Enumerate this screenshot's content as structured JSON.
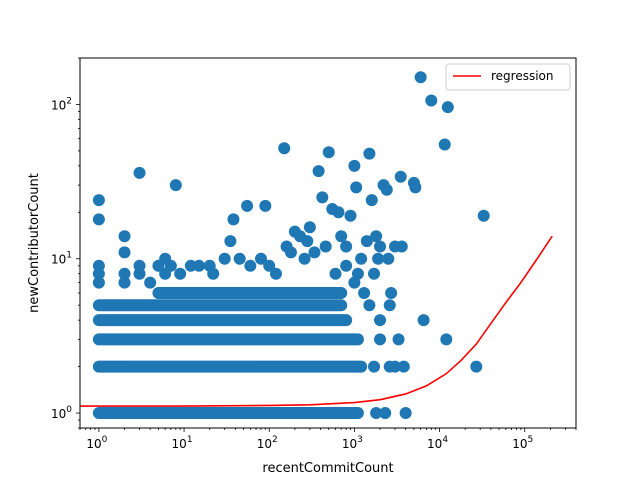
{
  "chart_data": {
    "type": "scatter",
    "title": "",
    "xlabel": "recentCommitCount",
    "ylabel": "newContributorCount",
    "xscale": "log",
    "yscale": "log",
    "xlim": [
      0.6,
      400000
    ],
    "ylim": [
      0.8,
      200
    ],
    "grid": false,
    "legend": {
      "position": "top-right",
      "entries": [
        "regression"
      ]
    },
    "x_ticks": [
      {
        "value": 1,
        "base": "10",
        "exp": "0"
      },
      {
        "value": 10,
        "base": "10",
        "exp": "1"
      },
      {
        "value": 100,
        "base": "10",
        "exp": "2"
      },
      {
        "value": 1000,
        "base": "10",
        "exp": "3"
      },
      {
        "value": 10000,
        "base": "10",
        "exp": "4"
      },
      {
        "value": 100000,
        "base": "10",
        "exp": "5"
      }
    ],
    "y_ticks": [
      {
        "value": 1,
        "base": "10",
        "exp": "0"
      },
      {
        "value": 10,
        "base": "10",
        "exp": "1"
      },
      {
        "value": 100,
        "base": "10",
        "exp": "2"
      }
    ],
    "colors": {
      "points": "#1f77b4",
      "regression": "#ff0000"
    },
    "bands": [
      {
        "y": 1,
        "xmin": 1,
        "xmax": 1100
      },
      {
        "y": 2,
        "xmin": 1,
        "xmax": 1200
      },
      {
        "y": 3,
        "xmin": 1,
        "xmax": 1100
      },
      {
        "y": 4,
        "xmin": 1,
        "xmax": 800
      },
      {
        "y": 5,
        "xmin": 1,
        "xmax": 700
      },
      {
        "y": 6,
        "xmin": 5,
        "xmax": 700
      }
    ],
    "points": [
      {
        "x": 1,
        "y": 24
      },
      {
        "x": 1,
        "y": 18
      },
      {
        "x": 1,
        "y": 9
      },
      {
        "x": 1,
        "y": 8
      },
      {
        "x": 1,
        "y": 7
      },
      {
        "x": 2,
        "y": 14
      },
      {
        "x": 2,
        "y": 11
      },
      {
        "x": 2,
        "y": 8
      },
      {
        "x": 2,
        "y": 7
      },
      {
        "x": 3,
        "y": 36
      },
      {
        "x": 3,
        "y": 9
      },
      {
        "x": 3,
        "y": 8
      },
      {
        "x": 4,
        "y": 7
      },
      {
        "x": 5,
        "y": 9
      },
      {
        "x": 6,
        "y": 10
      },
      {
        "x": 6,
        "y": 8
      },
      {
        "x": 8,
        "y": 30
      },
      {
        "x": 7,
        "y": 9
      },
      {
        "x": 9,
        "y": 8
      },
      {
        "x": 12,
        "y": 9
      },
      {
        "x": 15,
        "y": 9
      },
      {
        "x": 20,
        "y": 9
      },
      {
        "x": 22,
        "y": 8
      },
      {
        "x": 30,
        "y": 10
      },
      {
        "x": 35,
        "y": 13
      },
      {
        "x": 38,
        "y": 18
      },
      {
        "x": 45,
        "y": 10
      },
      {
        "x": 55,
        "y": 22
      },
      {
        "x": 60,
        "y": 9
      },
      {
        "x": 80,
        "y": 10
      },
      {
        "x": 90,
        "y": 22
      },
      {
        "x": 100,
        "y": 9
      },
      {
        "x": 120,
        "y": 8
      },
      {
        "x": 150,
        "y": 52
      },
      {
        "x": 160,
        "y": 12
      },
      {
        "x": 180,
        "y": 11
      },
      {
        "x": 200,
        "y": 15
      },
      {
        "x": 230,
        "y": 14
      },
      {
        "x": 260,
        "y": 10
      },
      {
        "x": 280,
        "y": 13
      },
      {
        "x": 300,
        "y": 16
      },
      {
        "x": 340,
        "y": 11
      },
      {
        "x": 380,
        "y": 37
      },
      {
        "x": 420,
        "y": 25
      },
      {
        "x": 460,
        "y": 12
      },
      {
        "x": 500,
        "y": 49
      },
      {
        "x": 550,
        "y": 21
      },
      {
        "x": 650,
        "y": 20
      },
      {
        "x": 700,
        "y": 14
      },
      {
        "x": 800,
        "y": 12
      },
      {
        "x": 900,
        "y": 19
      },
      {
        "x": 1000,
        "y": 40
      },
      {
        "x": 1050,
        "y": 29
      },
      {
        "x": 1200,
        "y": 10
      },
      {
        "x": 1400,
        "y": 13
      },
      {
        "x": 1500,
        "y": 48
      },
      {
        "x": 1600,
        "y": 24
      },
      {
        "x": 1800,
        "y": 14
      },
      {
        "x": 2000,
        "y": 12
      },
      {
        "x": 2200,
        "y": 30
      },
      {
        "x": 2400,
        "y": 28
      },
      {
        "x": 2500,
        "y": 10
      },
      {
        "x": 2700,
        "y": 6
      },
      {
        "x": 3000,
        "y": 12
      },
      {
        "x": 3500,
        "y": 34
      },
      {
        "x": 3600,
        "y": 12
      },
      {
        "x": 3800,
        "y": 2
      },
      {
        "x": 4000,
        "y": 1
      },
      {
        "x": 5000,
        "y": 31
      },
      {
        "x": 5200,
        "y": 29
      },
      {
        "x": 6000,
        "y": 150
      },
      {
        "x": 6500,
        "y": 4
      },
      {
        "x": 8000,
        "y": 106
      },
      {
        "x": 11500,
        "y": 55
      },
      {
        "x": 12500,
        "y": 96
      },
      {
        "x": 12000,
        "y": 3
      },
      {
        "x": 27000,
        "y": 2
      },
      {
        "x": 33000,
        "y": 19
      },
      {
        "x": 1300,
        "y": 6
      },
      {
        "x": 1500,
        "y": 5
      },
      {
        "x": 2000,
        "y": 4
      },
      {
        "x": 2600,
        "y": 5
      },
      {
        "x": 2000,
        "y": 3
      },
      {
        "x": 2600,
        "y": 2
      },
      {
        "x": 1000,
        "y": 7
      },
      {
        "x": 1100,
        "y": 8
      },
      {
        "x": 1700,
        "y": 8
      },
      {
        "x": 1900,
        "y": 10
      },
      {
        "x": 1800,
        "y": 1
      },
      {
        "x": 2300,
        "y": 1
      },
      {
        "x": 3000,
        "y": 2
      },
      {
        "x": 3300,
        "y": 3
      },
      {
        "x": 1700,
        "y": 2
      },
      {
        "x": 800,
        "y": 9
      },
      {
        "x": 600,
        "y": 8
      }
    ],
    "regression": [
      {
        "x": 0.6,
        "y": 1.11
      },
      {
        "x": 1,
        "y": 1.11
      },
      {
        "x": 10,
        "y": 1.11
      },
      {
        "x": 100,
        "y": 1.12
      },
      {
        "x": 300,
        "y": 1.13
      },
      {
        "x": 1000,
        "y": 1.17
      },
      {
        "x": 2000,
        "y": 1.22
      },
      {
        "x": 4000,
        "y": 1.33
      },
      {
        "x": 7000,
        "y": 1.5
      },
      {
        "x": 12000,
        "y": 1.8
      },
      {
        "x": 18000,
        "y": 2.2
      },
      {
        "x": 27000,
        "y": 2.8
      },
      {
        "x": 40000,
        "y": 3.8
      },
      {
        "x": 60000,
        "y": 5.2
      },
      {
        "x": 90000,
        "y": 7
      },
      {
        "x": 140000,
        "y": 10
      },
      {
        "x": 210000,
        "y": 14
      }
    ]
  }
}
